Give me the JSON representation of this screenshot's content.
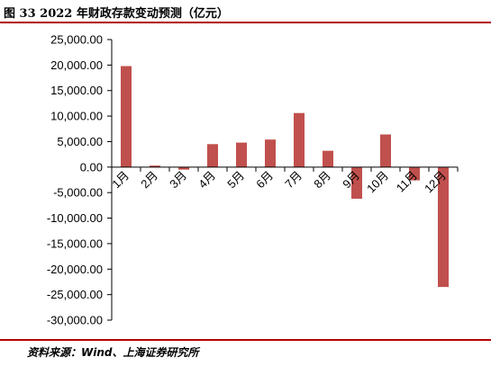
{
  "header": {
    "title": "图 33 2022 年财政存款变动预测（亿元）"
  },
  "footer": {
    "source": "资料来源：Wind、上海证券研究所"
  },
  "colors": {
    "bar": "#c0504d",
    "rule": "#b00000",
    "axis": "#000000"
  },
  "chart_data": {
    "type": "bar",
    "title": "",
    "xlabel": "",
    "ylabel": "",
    "categories": [
      "1月",
      "2月",
      "3月",
      "4月",
      "5月",
      "6月",
      "7月",
      "8月",
      "9月",
      "10月",
      "11月",
      "12月"
    ],
    "series": [
      {
        "values": [
          19800,
          300,
          -500,
          4500,
          4800,
          5400,
          10600,
          3200,
          -6200,
          6400,
          -2600,
          -23500
        ]
      }
    ],
    "y_tick_labels": [
      "25,000.00",
      "20,000.00",
      "15,000.00",
      "10,000.00",
      "5,000.00",
      "0.00",
      "-5,000.00",
      "-10,000.00",
      "-15,000.00",
      "-20,000.00",
      "-25,000.00",
      "-30,000.00"
    ],
    "ylim": [
      -30000,
      25000
    ],
    "grid": false,
    "legend": "none"
  }
}
